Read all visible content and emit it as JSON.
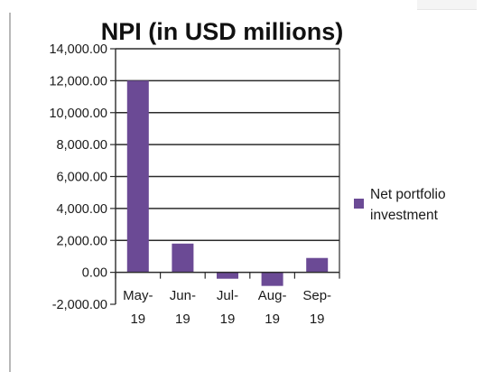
{
  "chart_data": {
    "type": "bar",
    "title": "NPI (in USD millions)",
    "categories": [
      {
        "line1": "May-",
        "line2": "19"
      },
      {
        "line1": "Jun-",
        "line2": "19"
      },
      {
        "line1": "Jul-",
        "line2": "19"
      },
      {
        "line1": "Aug-",
        "line2": "19"
      },
      {
        "line1": "Sep-",
        "line2": "19"
      }
    ],
    "series": [
      {
        "name": "Net portfolio investment",
        "values": [
          12000,
          1800,
          -400,
          -850,
          900
        ],
        "color": "#6b4a95"
      }
    ],
    "ylim": [
      -2000,
      14000
    ],
    "yticks": [
      14000,
      12000,
      10000,
      8000,
      6000,
      4000,
      2000,
      0,
      -2000
    ],
    "ytick_labels": [
      "14,000.00",
      "12,000.00",
      "10,000.00",
      "8,000.00",
      "6,000.00",
      "4,000.00",
      "2,000.00",
      "0.00",
      "-2,000.00"
    ],
    "grid": true,
    "legend": {
      "placement": "right",
      "lines": [
        "Net portfolio",
        "investment"
      ]
    }
  }
}
